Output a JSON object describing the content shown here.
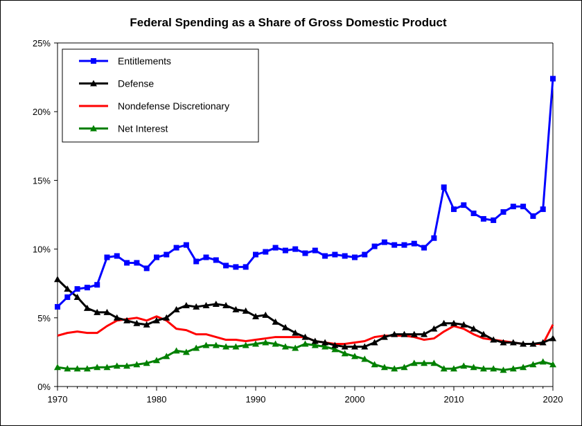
{
  "chart_data": {
    "type": "line",
    "title": "Federal Spending as a Share of Gross Domestic Product",
    "xlabel": "",
    "ylabel": "",
    "xlim": [
      1970,
      2020
    ],
    "ylim": [
      0,
      25
    ],
    "x_ticks": [
      1970,
      1980,
      1990,
      2000,
      2010,
      2020
    ],
    "x_tick_labels": [
      "1970",
      "1980",
      "1990",
      "2000",
      "2010",
      "2020"
    ],
    "y_ticks": [
      0,
      5,
      10,
      15,
      20,
      25
    ],
    "y_tick_labels": [
      "0%",
      "5%",
      "10%",
      "15%",
      "20%",
      "25%"
    ],
    "grid": false,
    "legend_position": "top-left",
    "x": [
      1970,
      1971,
      1972,
      1973,
      1974,
      1975,
      1976,
      1977,
      1978,
      1979,
      1980,
      1981,
      1982,
      1983,
      1984,
      1985,
      1986,
      1987,
      1988,
      1989,
      1990,
      1991,
      1992,
      1993,
      1994,
      1995,
      1996,
      1997,
      1998,
      1999,
      2000,
      2001,
      2002,
      2003,
      2004,
      2005,
      2006,
      2007,
      2008,
      2009,
      2010,
      2011,
      2012,
      2013,
      2014,
      2015,
      2016,
      2017,
      2018,
      2019,
      2020
    ],
    "series": [
      {
        "name": "Entitlements",
        "color": "#0000ff",
        "marker": "square",
        "values": [
          5.8,
          6.5,
          7.1,
          7.2,
          7.4,
          9.4,
          9.5,
          9.0,
          9.0,
          8.6,
          9.4,
          9.6,
          10.1,
          10.3,
          9.1,
          9.4,
          9.2,
          8.8,
          8.7,
          8.7,
          9.6,
          9.8,
          10.1,
          9.9,
          10.0,
          9.7,
          9.9,
          9.5,
          9.6,
          9.5,
          9.4,
          9.6,
          10.2,
          10.5,
          10.3,
          10.3,
          10.4,
          10.1,
          10.8,
          14.5,
          12.9,
          13.2,
          12.6,
          12.2,
          12.1,
          12.7,
          13.1,
          13.1,
          12.4,
          12.9,
          22.4
        ]
      },
      {
        "name": "Defense",
        "color": "#000000",
        "marker": "triangle",
        "values": [
          7.8,
          7.1,
          6.5,
          5.7,
          5.4,
          5.4,
          5.0,
          4.8,
          4.6,
          4.5,
          4.8,
          5.0,
          5.6,
          5.9,
          5.8,
          5.9,
          6.0,
          5.9,
          5.6,
          5.5,
          5.1,
          5.2,
          4.7,
          4.3,
          3.9,
          3.6,
          3.3,
          3.2,
          3.0,
          2.9,
          2.9,
          2.9,
          3.2,
          3.6,
          3.8,
          3.8,
          3.8,
          3.8,
          4.2,
          4.6,
          4.6,
          4.5,
          4.2,
          3.8,
          3.4,
          3.2,
          3.2,
          3.1,
          3.1,
          3.2,
          3.5
        ]
      },
      {
        "name": "Nondefense Discretionary",
        "color": "#ff0000",
        "marker": "none",
        "values": [
          3.7,
          3.9,
          4.0,
          3.9,
          3.9,
          4.4,
          4.8,
          4.9,
          5.0,
          4.8,
          5.1,
          4.8,
          4.2,
          4.1,
          3.8,
          3.8,
          3.6,
          3.4,
          3.4,
          3.3,
          3.4,
          3.5,
          3.6,
          3.6,
          3.6,
          3.6,
          3.3,
          3.2,
          3.1,
          3.1,
          3.2,
          3.3,
          3.6,
          3.7,
          3.7,
          3.7,
          3.6,
          3.4,
          3.5,
          4.0,
          4.4,
          4.2,
          3.8,
          3.5,
          3.4,
          3.3,
          3.2,
          3.1,
          3.1,
          3.1,
          4.5
        ]
      },
      {
        "name": "Net Interest",
        "color": "#008000",
        "marker": "triangle",
        "values": [
          1.4,
          1.3,
          1.3,
          1.3,
          1.4,
          1.4,
          1.5,
          1.5,
          1.6,
          1.7,
          1.9,
          2.2,
          2.6,
          2.5,
          2.8,
          3.0,
          3.0,
          2.9,
          2.9,
          3.0,
          3.1,
          3.2,
          3.1,
          2.9,
          2.8,
          3.1,
          3.0,
          2.9,
          2.7,
          2.4,
          2.2,
          2.0,
          1.6,
          1.4,
          1.3,
          1.4,
          1.7,
          1.7,
          1.7,
          1.3,
          1.3,
          1.5,
          1.4,
          1.3,
          1.3,
          1.2,
          1.3,
          1.4,
          1.6,
          1.8,
          1.6
        ]
      }
    ]
  }
}
